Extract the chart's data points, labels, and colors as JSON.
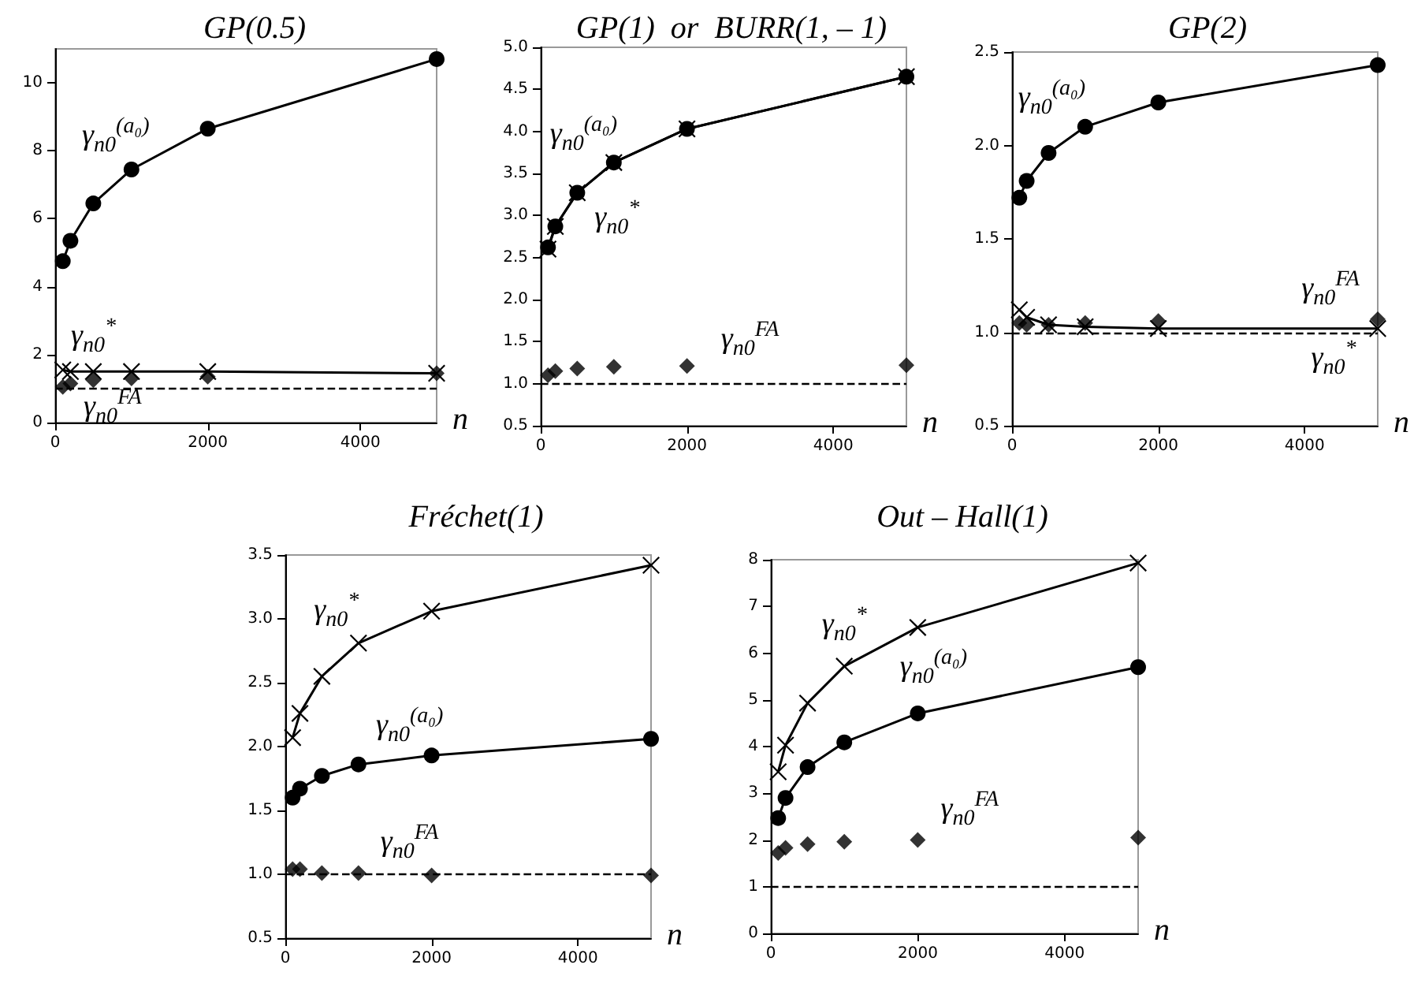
{
  "chart_data": [
    {
      "type": "line",
      "title": "GP(0.5)",
      "xlabel": "n",
      "x": [
        100,
        200,
        500,
        1000,
        2000,
        5000
      ],
      "xlim": [
        0,
        5000
      ],
      "xticks": [
        0,
        2000,
        4000
      ],
      "ylim": [
        0,
        11
      ],
      "yticks": [
        0,
        2,
        4,
        6,
        8,
        10
      ],
      "grid": false,
      "legend": false,
      "series": [
        {
          "name": "γ$_{n0}$$^{(a₀)}$",
          "marker": "circle",
          "color": "#000000",
          "values": [
            4.75,
            5.35,
            6.45,
            7.45,
            8.65,
            10.7
          ]
        },
        {
          "name": "γ$_{n0}$$^{*}$",
          "marker": "cross",
          "color": "#000000",
          "values": [
            1.55,
            1.5,
            1.5,
            1.5,
            1.5,
            1.45
          ]
        },
        {
          "name": "γ$_{n0}$$^{FA}$",
          "type": "scatter",
          "marker": "diamond",
          "color": "#000000",
          "values": [
            1.05,
            1.15,
            1.25,
            1.3,
            1.35,
            1.45
          ]
        }
      ],
      "ref_lines": [
        {
          "axis": "y",
          "value": 1,
          "line_style": "dashed",
          "color": "#000000"
        }
      ]
    },
    {
      "type": "line",
      "title": "GP(1)  or  BURR(1, – 1)",
      "xlabel": "n",
      "x": [
        100,
        200,
        500,
        1000,
        2000,
        5000
      ],
      "xlim": [
        0,
        5000
      ],
      "xticks": [
        0,
        2000,
        4000
      ],
      "ylim": [
        0.5,
        5
      ],
      "yticks": [
        {
          "value": 0.5,
          "label": "0.5"
        },
        {
          "value": 1,
          "label": "1.0"
        },
        {
          "value": 1.5,
          "label": "1.5"
        },
        {
          "value": 2,
          "label": "2.0"
        },
        {
          "value": 2.5,
          "label": "2.5"
        },
        {
          "value": 3,
          "label": "3.0"
        },
        {
          "value": 3.5,
          "label": "3.5"
        },
        {
          "value": 4,
          "label": "4.0"
        },
        {
          "value": 4.5,
          "label": "4.5"
        },
        {
          "value": 5,
          "label": "5.0"
        }
      ],
      "grid": false,
      "legend": false,
      "series": [
        {
          "name": "γ$_{n0}$$^{(a₀)}$",
          "marker": "circle",
          "color": "#000000",
          "values": [
            2.62,
            2.87,
            3.27,
            3.63,
            4.03,
            4.65
          ]
        },
        {
          "name": "γ$_{n0}$$^{*}$",
          "marker": "cross",
          "color": "#000000",
          "values": [
            2.6,
            2.87,
            3.27,
            3.63,
            4.03,
            4.65
          ]
        },
        {
          "name": "γ$_{n0}$$^{FA}$",
          "type": "scatter",
          "marker": "diamond",
          "color": "#000000",
          "values": [
            1.1,
            1.15,
            1.18,
            1.2,
            1.21,
            1.22
          ]
        }
      ],
      "ref_lines": [
        {
          "axis": "y",
          "value": 1,
          "line_style": "dashed",
          "color": "#000000"
        }
      ]
    },
    {
      "type": "line",
      "title": "GP(2)",
      "xlabel": "n",
      "x": [
        100,
        200,
        500,
        1000,
        2000,
        5000
      ],
      "xlim": [
        0,
        5000
      ],
      "xticks": [
        0,
        2000,
        4000
      ],
      "ylim": [
        0.5,
        2.5
      ],
      "yticks": [
        {
          "value": 0.5,
          "label": "0.5"
        },
        {
          "value": 1,
          "label": "1.0"
        },
        {
          "value": 1.5,
          "label": "1.5"
        },
        {
          "value": 2,
          "label": "2.0"
        },
        {
          "value": 2.5,
          "label": "2.5"
        }
      ],
      "grid": false,
      "legend": false,
      "series": [
        {
          "name": "γ$_{n0}$$^{(a₀)}$",
          "marker": "circle",
          "color": "#000000",
          "values": [
            1.72,
            1.81,
            1.96,
            2.1,
            2.23,
            2.43
          ]
        },
        {
          "name": "γ$_{n0}$$^{*}$",
          "marker": "cross",
          "color": "#000000",
          "values": [
            1.12,
            1.08,
            1.04,
            1.03,
            1.02,
            1.02
          ]
        },
        {
          "name": "γ$_{n0}$$^{FA}$",
          "type": "scatter",
          "marker": "diamond",
          "color": "#000000",
          "values": [
            1.05,
            1.04,
            1.04,
            1.05,
            1.06,
            1.07
          ]
        }
      ],
      "ref_lines": [
        {
          "axis": "y",
          "value": 1,
          "line_style": "dashed",
          "color": "#000000"
        }
      ]
    },
    {
      "type": "line",
      "title": "Fréchet(1)",
      "xlabel": "n",
      "x": [
        100,
        200,
        500,
        1000,
        2000,
        5000
      ],
      "xlim": [
        0,
        5000
      ],
      "xticks": [
        0,
        2000,
        4000
      ],
      "ylim": [
        0.5,
        3.5
      ],
      "yticks": [
        {
          "value": 0.5,
          "label": "0.5"
        },
        {
          "value": 1,
          "label": "1.0"
        },
        {
          "value": 1.5,
          "label": "1.5"
        },
        {
          "value": 2,
          "label": "2.0"
        },
        {
          "value": 2.5,
          "label": "2.5"
        },
        {
          "value": 3,
          "label": "3.0"
        },
        {
          "value": 3.5,
          "label": "3.5"
        }
      ],
      "grid": false,
      "legend": false,
      "series": [
        {
          "name": "γ$_{n0}$$^{(a₀)}$",
          "marker": "circle",
          "color": "#000000",
          "values": [
            1.6,
            1.67,
            1.77,
            1.86,
            1.93,
            2.06
          ]
        },
        {
          "name": "γ$_{n0}$$^{*}$",
          "marker": "cross",
          "color": "#000000",
          "values": [
            2.07,
            2.26,
            2.55,
            2.81,
            3.06,
            3.42
          ]
        },
        {
          "name": "γ$_{n0}$$^{FA}$",
          "type": "scatter",
          "marker": "diamond",
          "color": "#000000",
          "values": [
            1.04,
            1.04,
            1.01,
            1.01,
            0.99,
            0.99
          ]
        }
      ],
      "ref_lines": [
        {
          "axis": "y",
          "value": 1,
          "line_style": "dashed",
          "color": "#000000"
        }
      ]
    },
    {
      "type": "line",
      "title": "Out – Hall(1)",
      "xlabel": "n",
      "x": [
        100,
        200,
        500,
        1000,
        2000,
        5000
      ],
      "xlim": [
        0,
        5000
      ],
      "xticks": [
        0,
        2000,
        4000
      ],
      "ylim": [
        0,
        8
      ],
      "yticks": [
        0,
        1,
        2,
        3,
        4,
        5,
        6,
        7,
        8
      ],
      "grid": false,
      "legend": false,
      "series": [
        {
          "name": "γ$_{n0}$$^{(a₀)}$",
          "marker": "circle",
          "color": "#000000",
          "values": [
            2.47,
            2.9,
            3.56,
            4.09,
            4.71,
            5.7
          ]
        },
        {
          "name": "γ$_{n0}$$^{*}$",
          "marker": "cross",
          "color": "#000000",
          "values": [
            3.46,
            4.03,
            4.93,
            5.72,
            6.55,
            7.93
          ]
        },
        {
          "name": "γ$_{n0}$$^{FA}$",
          "type": "scatter",
          "marker": "diamond",
          "color": "#000000",
          "values": [
            1.72,
            1.83,
            1.91,
            1.96,
            2.0,
            2.05
          ]
        }
      ],
      "ref_lines": [
        {
          "axis": "y",
          "value": 1,
          "line_style": "dashed",
          "color": "#000000"
        }
      ]
    }
  ]
}
